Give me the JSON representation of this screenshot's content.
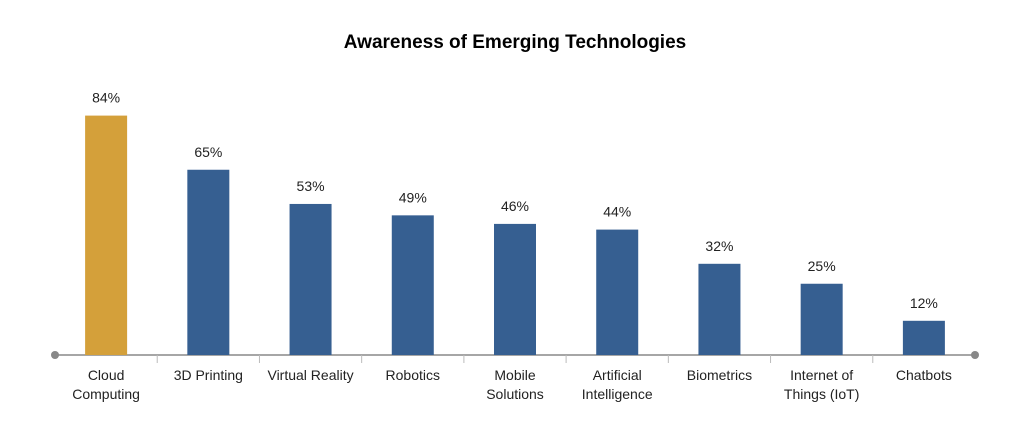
{
  "chart_data": {
    "type": "bar",
    "title": "Awareness of Emerging Technologies",
    "categories": [
      "Cloud Computing",
      "3D Printing",
      "Virtual Reality",
      "Robotics",
      "Mobile Solutions",
      "Artificial Intelligence",
      "Biometrics",
      "Internet of Things (IoT)",
      "Chatbots"
    ],
    "values": [
      84,
      65,
      53,
      49,
      46,
      44,
      32,
      25,
      12
    ],
    "value_labels": [
      "84%",
      "65%",
      "53%",
      "49%",
      "46%",
      "44%",
      "32%",
      "25%",
      "12%"
    ],
    "colors": [
      "#d4a03a",
      "#365f91",
      "#365f91",
      "#365f91",
      "#365f91",
      "#365f91",
      "#365f91",
      "#365f91",
      "#365f91"
    ],
    "ylim": [
      0,
      100
    ]
  }
}
